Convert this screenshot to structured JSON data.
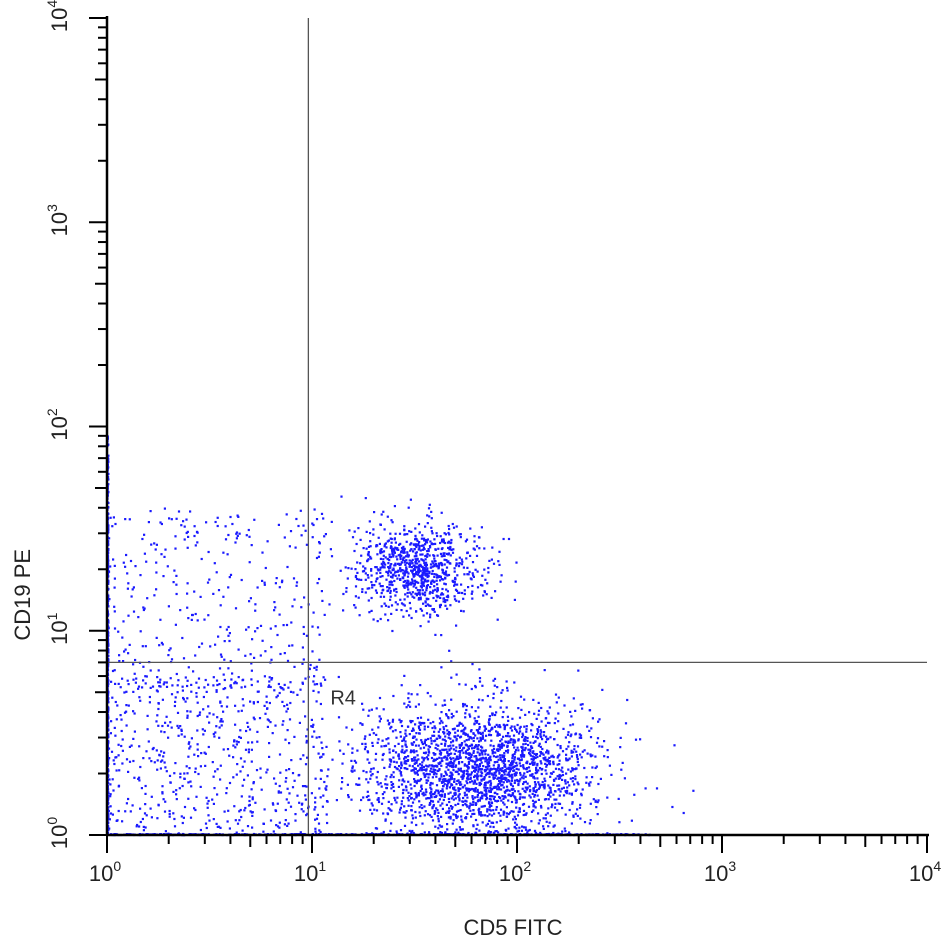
{
  "chart_data": {
    "type": "scatter",
    "title": "",
    "xlabel": "CD5 FITC",
    "ylabel": "CD19 PE",
    "xscale": "log",
    "yscale": "log",
    "xlim": [
      1,
      10000
    ],
    "ylim": [
      1,
      10000
    ],
    "x_ticks": [
      {
        "base": "10",
        "exp": "0"
      },
      {
        "base": "10",
        "exp": "1"
      },
      {
        "base": "10",
        "exp": "2"
      },
      {
        "base": "10",
        "exp": "3"
      },
      {
        "base": "10",
        "exp": "4"
      }
    ],
    "y_ticks": [
      {
        "base": "10",
        "exp": "0"
      },
      {
        "base": "10",
        "exp": "1"
      },
      {
        "base": "10",
        "exp": "2"
      },
      {
        "base": "10",
        "exp": "3"
      },
      {
        "base": "10",
        "exp": "4"
      }
    ],
    "point_color": "#1a1aff",
    "gate_color": "#555555",
    "quadrant_gate": {
      "label": "R4",
      "x": 9.6,
      "y": 7.0
    },
    "populations": [
      {
        "description": "CD19+ CD5+ cluster",
        "center": [
          33,
          20
        ],
        "spread_log": [
          0.16,
          0.11
        ],
        "count": 900
      },
      {
        "description": "CD19- CD5+ cluster",
        "center": [
          65,
          2.1
        ],
        "spread_log": [
          0.28,
          0.17
        ],
        "count": 2300
      },
      {
        "description": "diffuse low events",
        "range_x": [
          1,
          12
        ],
        "range_y": [
          1,
          6
        ],
        "count": 600
      },
      {
        "description": "diffuse CD19 events",
        "range_x": [
          1,
          12
        ],
        "range_y": [
          5,
          40
        ],
        "count": 350
      },
      {
        "description": "axis-pinned events",
        "x": 1.0,
        "range_y": [
          1,
          90
        ],
        "count": 500
      },
      {
        "description": "floor-pinned events",
        "range_x": [
          1,
          450
        ],
        "y": 1.0,
        "count": 500
      }
    ]
  }
}
